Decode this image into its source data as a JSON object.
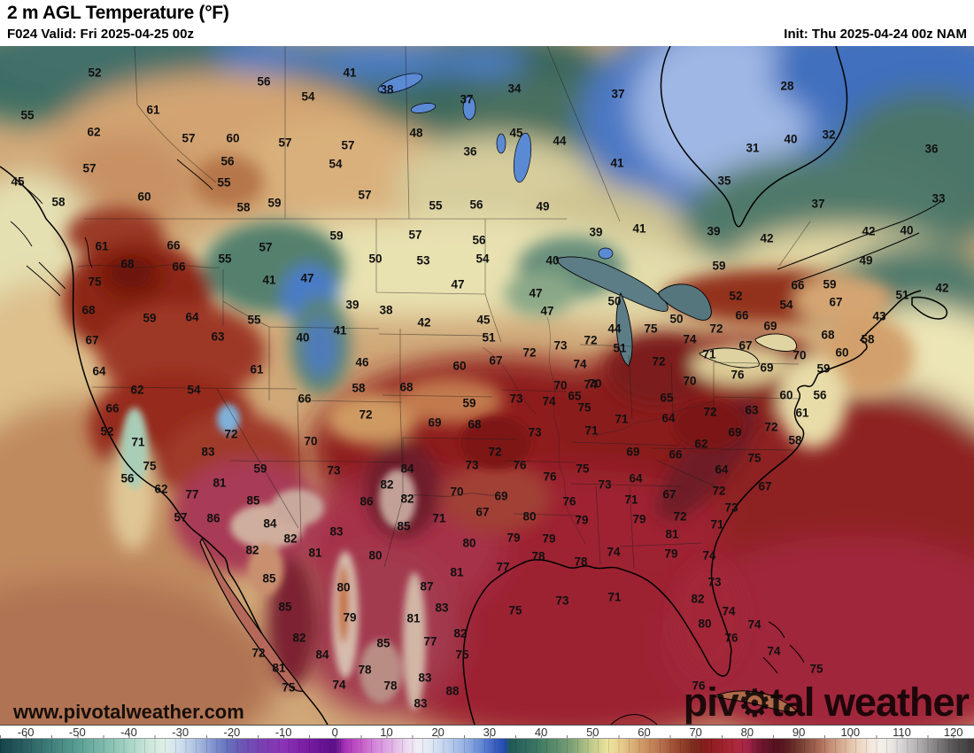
{
  "header": {
    "title": "2 m AGL Temperature (°F)",
    "valid": "F024 Valid: Fri 2025-04-25 00z",
    "init": "Init: Thu 2025-04-24 00z NAM"
  },
  "watermark": {
    "url": "www.pivotalweather.com",
    "brand_prefix": "piv",
    "brand_suffix": "tal weather",
    "gear_icon": "⚙"
  },
  "colorbar": {
    "units": "°F",
    "min": -65,
    "max": 124,
    "ticks": [
      -60,
      -50,
      -40,
      -30,
      -20,
      -10,
      0,
      10,
      20,
      30,
      40,
      50,
      60,
      70,
      80,
      90,
      100,
      110,
      120
    ],
    "stops": [
      [
        -65,
        "#16444c"
      ],
      [
        -60,
        "#2b5f62"
      ],
      [
        -55,
        "#3f807c"
      ],
      [
        -50,
        "#599e92"
      ],
      [
        -45,
        "#7cb9ab"
      ],
      [
        -40,
        "#a6d4c5"
      ],
      [
        -36,
        "#cbe7da"
      ],
      [
        -33,
        "#dff0e8"
      ],
      [
        -30,
        "#cedeee"
      ],
      [
        -27,
        "#acc0e0"
      ],
      [
        -24,
        "#8698d2"
      ],
      [
        -21,
        "#6672be"
      ],
      [
        -18,
        "#6b56b6"
      ],
      [
        -14,
        "#7b3fb2"
      ],
      [
        -10,
        "#8a33b6"
      ],
      [
        -6,
        "#7b1fa4"
      ],
      [
        -2,
        "#671292"
      ],
      [
        0,
        "#5c1088"
      ],
      [
        2,
        "#a832b6"
      ],
      [
        5,
        "#c55cc8"
      ],
      [
        8,
        "#d58adc"
      ],
      [
        11,
        "#e0b2e6"
      ],
      [
        14,
        "#eedbf2"
      ],
      [
        16,
        "#f1ecf6"
      ],
      [
        18,
        "#e5ebf5"
      ],
      [
        20,
        "#d0ddf1"
      ],
      [
        23,
        "#b0c6ea"
      ],
      [
        26,
        "#8aa8e0"
      ],
      [
        28,
        "#6a8ed6"
      ],
      [
        30,
        "#4a6ec8"
      ],
      [
        32,
        "#2d54b6"
      ],
      [
        33,
        "#244cae"
      ],
      [
        34,
        "#1e5a53"
      ],
      [
        36,
        "#2b665d"
      ],
      [
        38,
        "#366f60"
      ],
      [
        40,
        "#437d63"
      ],
      [
        43,
        "#5d8e6c"
      ],
      [
        46,
        "#7ea176"
      ],
      [
        48,
        "#a0b880"
      ],
      [
        50,
        "#c4cc8c"
      ],
      [
        52,
        "#e0da96"
      ],
      [
        53,
        "#ece49b"
      ],
      [
        55,
        "#e9d392"
      ],
      [
        57,
        "#ddb97e"
      ],
      [
        60,
        "#cd9463"
      ],
      [
        63,
        "#b97450"
      ],
      [
        66,
        "#9d4e33"
      ],
      [
        68,
        "#8c3a26"
      ],
      [
        70,
        "#7c291d"
      ],
      [
        72,
        "#871d1d"
      ],
      [
        74,
        "#951f26"
      ],
      [
        76,
        "#a32430"
      ],
      [
        78,
        "#ad293d"
      ],
      [
        80,
        "#a42547"
      ],
      [
        81,
        "#8e203f"
      ],
      [
        82,
        "#771930"
      ],
      [
        84,
        "#631527"
      ],
      [
        86,
        "#561120"
      ],
      [
        88,
        "#5f2124"
      ],
      [
        90,
        "#723a30"
      ],
      [
        92,
        "#8e5344"
      ],
      [
        94,
        "#aa6b56"
      ],
      [
        96,
        "#c38b73"
      ],
      [
        98,
        "#d4a78d"
      ],
      [
        100,
        "#e3c2a9"
      ],
      [
        102,
        "#edd8c5"
      ],
      [
        104,
        "#f3e8db"
      ],
      [
        106,
        "#f3efe9"
      ],
      [
        108,
        "#e9e7e3"
      ],
      [
        110,
        "#d6d4d3"
      ],
      [
        112,
        "#bfbdbd"
      ],
      [
        114,
        "#a6a4a4"
      ],
      [
        116,
        "#8b8989"
      ],
      [
        118,
        "#706e6e"
      ],
      [
        120,
        "#575555"
      ],
      [
        124,
        "#3b3939"
      ]
    ]
  },
  "map": {
    "model": "NAM",
    "field": "2 m AGL Temperature",
    "labels": [
      [
        52,
        107,
        82
      ],
      [
        55,
        31,
        130
      ],
      [
        62,
        106,
        149
      ],
      [
        61,
        173,
        124
      ],
      [
        56,
        298,
        92
      ],
      [
        54,
        348,
        109
      ],
      [
        57,
        213,
        156
      ],
      [
        60,
        263,
        156
      ],
      [
        57,
        322,
        161
      ],
      [
        57,
        101,
        190
      ],
      [
        56,
        257,
        182
      ],
      [
        55,
        253,
        206
      ],
      [
        45,
        20,
        205
      ],
      [
        60,
        163,
        222
      ],
      [
        58,
        66,
        228
      ],
      [
        58,
        275,
        234
      ],
      [
        59,
        310,
        229
      ],
      [
        41,
        395,
        82
      ],
      [
        38,
        437,
        101
      ],
      [
        34,
        581,
        100
      ],
      [
        37,
        527,
        112
      ],
      [
        37,
        698,
        106
      ],
      [
        48,
        470,
        150
      ],
      [
        45,
        583,
        150
      ],
      [
        44,
        632,
        159
      ],
      [
        36,
        531,
        171
      ],
      [
        57,
        393,
        164
      ],
      [
        54,
        379,
        185
      ],
      [
        41,
        697,
        184
      ],
      [
        57,
        412,
        220
      ],
      [
        55,
        492,
        232
      ],
      [
        56,
        538,
        231
      ],
      [
        49,
        613,
        233
      ],
      [
        28,
        889,
        97
      ],
      [
        40,
        893,
        157
      ],
      [
        32,
        936,
        152
      ],
      [
        31,
        850,
        167
      ],
      [
        36,
        1052,
        168
      ],
      [
        35,
        818,
        204
      ],
      [
        37,
        924,
        230
      ],
      [
        33,
        1060,
        224
      ],
      [
        61,
        115,
        278
      ],
      [
        66,
        196,
        277
      ],
      [
        55,
        254,
        292
      ],
      [
        57,
        300,
        279
      ],
      [
        68,
        144,
        298
      ],
      [
        66,
        202,
        301
      ],
      [
        75,
        107,
        318
      ],
      [
        41,
        304,
        316
      ],
      [
        47,
        347,
        314
      ],
      [
        68,
        100,
        350
      ],
      [
        59,
        169,
        359
      ],
      [
        64,
        217,
        358
      ],
      [
        55,
        287,
        361
      ],
      [
        63,
        246,
        380
      ],
      [
        40,
        342,
        381
      ],
      [
        67,
        104,
        384
      ],
      [
        61,
        290,
        417
      ],
      [
        64,
        112,
        419
      ],
      [
        59,
        380,
        266
      ],
      [
        57,
        469,
        265
      ],
      [
        56,
        541,
        271
      ],
      [
        39,
        673,
        262
      ],
      [
        41,
        722,
        258
      ],
      [
        50,
        424,
        292
      ],
      [
        53,
        478,
        294
      ],
      [
        54,
        545,
        292
      ],
      [
        40,
        624,
        294
      ],
      [
        47,
        517,
        321
      ],
      [
        47,
        605,
        331
      ],
      [
        50,
        694,
        340
      ],
      [
        39,
        398,
        344
      ],
      [
        38,
        436,
        350
      ],
      [
        47,
        618,
        351
      ],
      [
        42,
        479,
        364
      ],
      [
        45,
        546,
        361
      ],
      [
        41,
        384,
        373
      ],
      [
        44,
        694,
        371
      ],
      [
        51,
        552,
        381
      ],
      [
        73,
        633,
        390
      ],
      [
        72,
        667,
        384
      ],
      [
        51,
        700,
        393
      ],
      [
        46,
        409,
        409
      ],
      [
        72,
        598,
        398
      ],
      [
        60,
        519,
        413
      ],
      [
        67,
        560,
        407
      ],
      [
        74,
        655,
        411
      ],
      [
        58,
        405,
        438
      ],
      [
        68,
        459,
        437
      ],
      [
        74,
        667,
        434
      ],
      [
        39,
        806,
        261
      ],
      [
        42,
        866,
        269
      ],
      [
        42,
        981,
        261
      ],
      [
        40,
        1024,
        260
      ],
      [
        59,
        812,
        300
      ],
      [
        49,
        978,
        294
      ],
      [
        66,
        901,
        322
      ],
      [
        59,
        937,
        321
      ],
      [
        42,
        1064,
        325
      ],
      [
        52,
        831,
        334
      ],
      [
        51,
        1019,
        333
      ],
      [
        54,
        888,
        344
      ],
      [
        67,
        944,
        341
      ],
      [
        66,
        838,
        356
      ],
      [
        50,
        764,
        360
      ],
      [
        69,
        870,
        368
      ],
      [
        43,
        993,
        357
      ],
      [
        72,
        809,
        371
      ],
      [
        75,
        735,
        371
      ],
      [
        68,
        935,
        378
      ],
      [
        74,
        779,
        383
      ],
      [
        58,
        980,
        383
      ],
      [
        67,
        842,
        390
      ],
      [
        71,
        801,
        400
      ],
      [
        60,
        951,
        398
      ],
      [
        70,
        903,
        401
      ],
      [
        72,
        744,
        408
      ],
      [
        69,
        866,
        415
      ],
      [
        76,
        833,
        423
      ],
      [
        59,
        930,
        416
      ],
      [
        70,
        779,
        430
      ],
      [
        70,
        633,
        435
      ],
      [
        70,
        672,
        433
      ],
      [
        62,
        155,
        440
      ],
      [
        54,
        219,
        440
      ],
      [
        66,
        344,
        450
      ],
      [
        66,
        127,
        461
      ],
      [
        52,
        121,
        487
      ],
      [
        72,
        261,
        490
      ],
      [
        70,
        351,
        498
      ],
      [
        71,
        156,
        499
      ],
      [
        83,
        235,
        510
      ],
      [
        59,
        294,
        529
      ],
      [
        75,
        169,
        526
      ],
      [
        56,
        144,
        540
      ],
      [
        81,
        248,
        545
      ],
      [
        62,
        182,
        552
      ],
      [
        77,
        217,
        558
      ],
      [
        85,
        286,
        565
      ],
      [
        57,
        204,
        584
      ],
      [
        86,
        241,
        585
      ],
      [
        84,
        305,
        591
      ],
      [
        82,
        328,
        608
      ],
      [
        82,
        285,
        621
      ],
      [
        81,
        356,
        624
      ],
      [
        59,
        530,
        455
      ],
      [
        73,
        583,
        450
      ],
      [
        74,
        620,
        453
      ],
      [
        65,
        649,
        447
      ],
      [
        75,
        660,
        460
      ],
      [
        72,
        413,
        468
      ],
      [
        69,
        491,
        477
      ],
      [
        68,
        536,
        479
      ],
      [
        71,
        702,
        473
      ],
      [
        73,
        604,
        488
      ],
      [
        71,
        668,
        486
      ],
      [
        72,
        559,
        510
      ],
      [
        69,
        715,
        510
      ],
      [
        73,
        377,
        531
      ],
      [
        73,
        533,
        525
      ],
      [
        76,
        587,
        525
      ],
      [
        84,
        460,
        529
      ],
      [
        75,
        658,
        529
      ],
      [
        76,
        621,
        538
      ],
      [
        82,
        437,
        547
      ],
      [
        73,
        683,
        547
      ],
      [
        64,
        718,
        540
      ],
      [
        82,
        460,
        563
      ],
      [
        86,
        414,
        566
      ],
      [
        70,
        516,
        555
      ],
      [
        69,
        566,
        560
      ],
      [
        76,
        643,
        566
      ],
      [
        71,
        713,
        564
      ],
      [
        67,
        545,
        578
      ],
      [
        71,
        496,
        585
      ],
      [
        80,
        598,
        583
      ],
      [
        79,
        657,
        587
      ],
      [
        79,
        722,
        586
      ],
      [
        85,
        456,
        594
      ],
      [
        83,
        380,
        600
      ],
      [
        79,
        580,
        607
      ],
      [
        79,
        620,
        608
      ],
      [
        80,
        530,
        613
      ],
      [
        80,
        424,
        627
      ],
      [
        78,
        608,
        628
      ],
      [
        74,
        693,
        623
      ],
      [
        65,
        753,
        449
      ],
      [
        60,
        888,
        446
      ],
      [
        56,
        926,
        446
      ],
      [
        72,
        802,
        465
      ],
      [
        63,
        849,
        463
      ],
      [
        64,
        755,
        472
      ],
      [
        61,
        906,
        466
      ],
      [
        69,
        830,
        488
      ],
      [
        72,
        871,
        482
      ],
      [
        62,
        792,
        501
      ],
      [
        58,
        898,
        497
      ],
      [
        66,
        763,
        513
      ],
      [
        75,
        852,
        517
      ],
      [
        64,
        815,
        530
      ],
      [
        67,
        864,
        549
      ],
      [
        72,
        812,
        554
      ],
      [
        67,
        756,
        558
      ],
      [
        73,
        826,
        573
      ],
      [
        72,
        768,
        583
      ],
      [
        71,
        810,
        592
      ],
      [
        81,
        759,
        603
      ],
      [
        79,
        758,
        625
      ],
      [
        74,
        801,
        627
      ],
      [
        85,
        304,
        653
      ],
      [
        85,
        322,
        685
      ],
      [
        82,
        338,
        720
      ],
      [
        84,
        364,
        739
      ],
      [
        72,
        292,
        737
      ],
      [
        81,
        315,
        754
      ],
      [
        75,
        326,
        776
      ],
      [
        77,
        568,
        640
      ],
      [
        78,
        656,
        634
      ],
      [
        81,
        516,
        646
      ],
      [
        87,
        482,
        662
      ],
      [
        80,
        388,
        663
      ],
      [
        73,
        635,
        678
      ],
      [
        71,
        694,
        674
      ],
      [
        79,
        395,
        697
      ],
      [
        83,
        499,
        686
      ],
      [
        75,
        582,
        689
      ],
      [
        81,
        467,
        698
      ],
      [
        82,
        520,
        715
      ],
      [
        85,
        433,
        726
      ],
      [
        77,
        486,
        724
      ],
      [
        75,
        522,
        739
      ],
      [
        78,
        412,
        756
      ],
      [
        74,
        383,
        773
      ],
      [
        78,
        441,
        774
      ],
      [
        83,
        480,
        765
      ],
      [
        88,
        511,
        780
      ],
      [
        83,
        475,
        794
      ],
      [
        73,
        807,
        657
      ],
      [
        82,
        788,
        676
      ],
      [
        74,
        823,
        690
      ],
      [
        80,
        796,
        704
      ],
      [
        76,
        826,
        720
      ],
      [
        74,
        852,
        705
      ],
      [
        74,
        874,
        735
      ],
      [
        75,
        922,
        755
      ],
      [
        76,
        789,
        774
      ]
    ]
  }
}
